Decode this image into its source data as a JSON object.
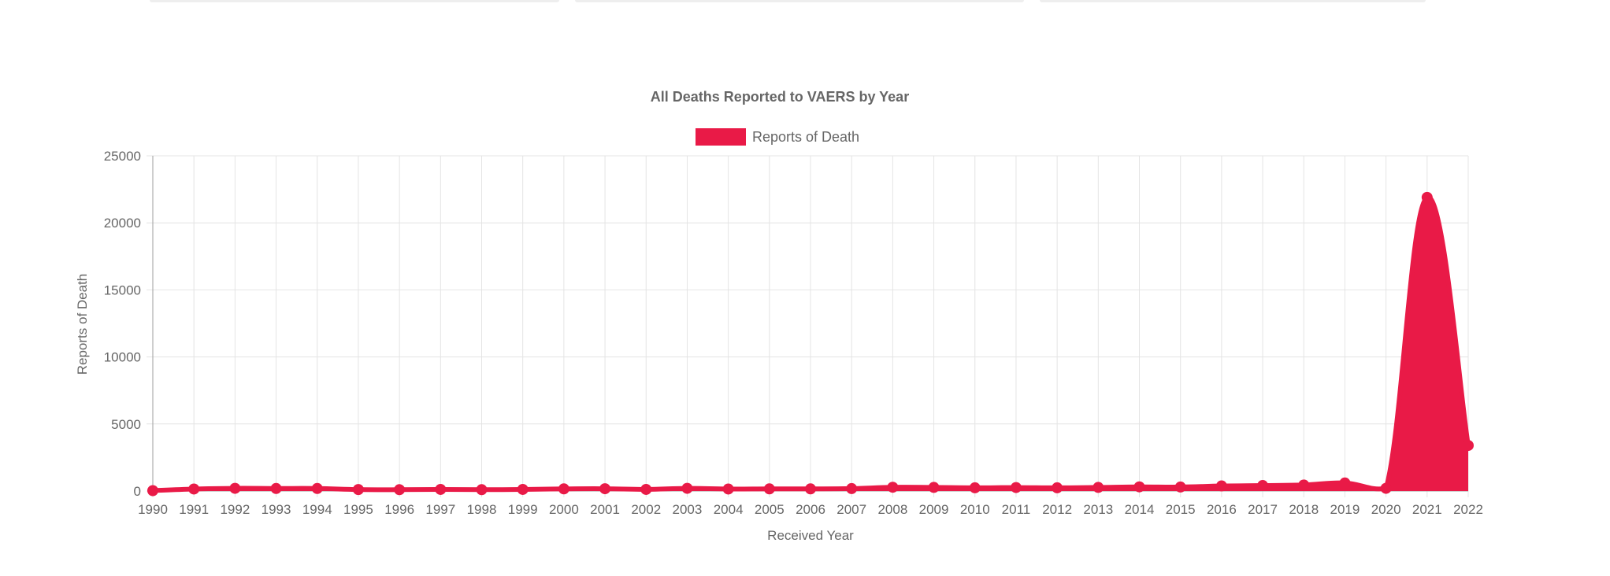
{
  "chart_data": {
    "type": "area",
    "title": "All Deaths Reported to VAERS by Year",
    "xlabel": "Received Year",
    "ylabel": "Reports of Death",
    "categories": [
      "1990",
      "1991",
      "1992",
      "1993",
      "1994",
      "1995",
      "1996",
      "1997",
      "1998",
      "1999",
      "2000",
      "2001",
      "2002",
      "2003",
      "2004",
      "2005",
      "2006",
      "2007",
      "2008",
      "2009",
      "2010",
      "2011",
      "2012",
      "2013",
      "2014",
      "2015",
      "2016",
      "2017",
      "2018",
      "2019",
      "2020",
      "2021",
      "2022"
    ],
    "series": [
      {
        "name": "Reports of Death",
        "values": [
          30,
          150,
          200,
          190,
          190,
          110,
          100,
          120,
          100,
          120,
          160,
          170,
          120,
          200,
          150,
          160,
          160,
          180,
          280,
          270,
          240,
          260,
          240,
          270,
          310,
          300,
          380,
          410,
          450,
          600,
          200,
          21900,
          3400
        ]
      }
    ],
    "yticks": [
      "0",
      "5000",
      "10000",
      "15000",
      "20000",
      "25000"
    ],
    "ylim": [
      0,
      25000
    ],
    "grid": true,
    "legend": "top-center",
    "color": "#e91a47"
  }
}
